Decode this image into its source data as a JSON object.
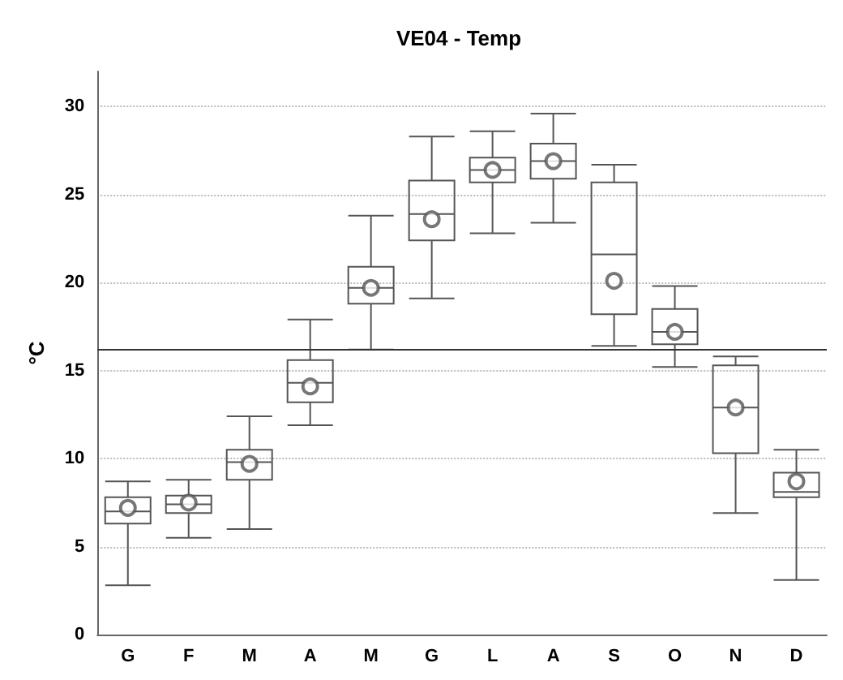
{
  "chart_data": {
    "type": "box",
    "title": "VE04 - Temp",
    "ylabel": "°C",
    "categories": [
      "G",
      "F",
      "M",
      "A",
      "M",
      "G",
      "L",
      "A",
      "S",
      "O",
      "N",
      "D"
    ],
    "boxes": [
      {
        "low": 2.8,
        "q1": 6.3,
        "median": 7.0,
        "q3": 7.8,
        "high": 8.7,
        "mean": 7.2
      },
      {
        "low": 5.5,
        "q1": 6.9,
        "median": 7.4,
        "q3": 7.9,
        "high": 8.8,
        "mean": 7.5
      },
      {
        "low": 6.0,
        "q1": 8.8,
        "median": 9.8,
        "q3": 10.5,
        "high": 12.4,
        "mean": 9.7
      },
      {
        "low": 11.9,
        "q1": 13.2,
        "median": 14.3,
        "q3": 15.6,
        "high": 17.9,
        "mean": 14.1
      },
      {
        "low": 16.2,
        "q1": 18.8,
        "median": 19.7,
        "q3": 20.9,
        "high": 23.8,
        "mean": 19.7
      },
      {
        "low": 19.1,
        "q1": 22.4,
        "median": 23.9,
        "q3": 25.8,
        "high": 28.3,
        "mean": 23.6
      },
      {
        "low": 22.8,
        "q1": 25.7,
        "median": 26.4,
        "q3": 27.1,
        "high": 28.6,
        "mean": 26.4
      },
      {
        "low": 23.4,
        "q1": 25.9,
        "median": 26.9,
        "q3": 27.9,
        "high": 29.6,
        "mean": 26.9
      },
      {
        "low": 16.4,
        "q1": 18.2,
        "median": 21.6,
        "q3": 25.7,
        "high": 26.7,
        "mean": 20.1
      },
      {
        "low": 15.2,
        "q1": 16.5,
        "median": 17.2,
        "q3": 18.5,
        "high": 19.8,
        "mean": 17.2
      },
      {
        "low": 6.9,
        "q1": 10.3,
        "median": 12.9,
        "q3": 15.3,
        "high": 15.8,
        "mean": 12.9
      },
      {
        "low": 3.1,
        "q1": 7.8,
        "median": 8.1,
        "q3": 9.2,
        "high": 10.5,
        "mean": 8.7
      }
    ],
    "color": "#555555",
    "ylim": [
      0,
      32
    ],
    "yticks": [
      0,
      5,
      10,
      15,
      20,
      25,
      30
    ],
    "grid": "y",
    "ref_lines": [
      {
        "axis": "y",
        "value": 16.2,
        "color": "#333333"
      }
    ]
  }
}
